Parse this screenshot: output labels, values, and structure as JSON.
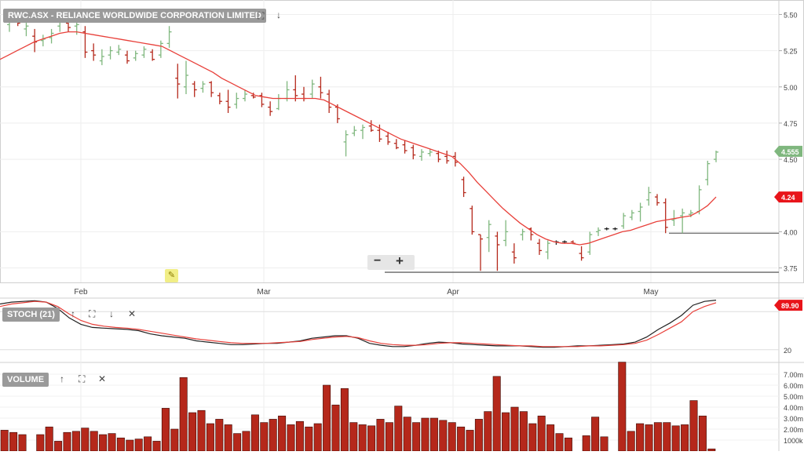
{
  "main_panel": {
    "title": "RWC.ASX - RELIANCE WORLDWIDE CORPORATION LIMITED",
    "y_ticks": [
      "5.50",
      "5.25",
      "5.00",
      "4.75",
      "4.50",
      "4.00",
      "3.75"
    ],
    "x_labels": [
      "Feb",
      "Mar",
      "Apr",
      "May"
    ],
    "last_price_label": "4.555",
    "ma_label": "4.24",
    "zoom_out": "−",
    "zoom_in": "+"
  },
  "stoch_panel": {
    "title": "STOCH (21)",
    "y_label": "20",
    "value_label": "89.90"
  },
  "volume_panel": {
    "title": "VOLUME",
    "y_ticks": [
      "7.00m",
      "6.00m",
      "5.00m",
      "4.00m",
      "3.00m",
      "2.00m",
      "1000k"
    ]
  },
  "colors": {
    "up": "#7fb77e",
    "down": "#b5281b",
    "neutral": "#222222",
    "ma": "#e8403a",
    "volume": "#b5281b"
  },
  "chart_data": [
    {
      "type": "line",
      "title": "RWC.ASX - RELIANCE WORLDWIDE CORPORATION LIMITED",
      "ylim": [
        3.65,
        5.6
      ],
      "bars": [
        {
          "o": 5.43,
          "h": 5.48,
          "l": 5.38,
          "c": 5.45
        },
        {
          "o": 5.45,
          "h": 5.49,
          "l": 5.42,
          "c": 5.44
        },
        {
          "o": 5.4,
          "h": 5.48,
          "l": 5.35,
          "c": 5.42
        },
        {
          "o": 5.35,
          "h": 5.4,
          "l": 5.24,
          "c": 5.31
        },
        {
          "o": 5.32,
          "h": 5.36,
          "l": 5.28,
          "c": 5.33
        },
        {
          "o": 5.34,
          "h": 5.4,
          "l": 5.3,
          "c": 5.37
        },
        {
          "o": 5.42,
          "h": 5.5,
          "l": 5.38,
          "c": 5.47
        },
        {
          "o": 5.44,
          "h": 5.5,
          "l": 5.38,
          "c": 5.41
        },
        {
          "o": 5.42,
          "h": 5.47,
          "l": 5.36,
          "c": 5.43
        },
        {
          "o": 5.38,
          "h": 5.42,
          "l": 5.2,
          "c": 5.24
        },
        {
          "o": 5.25,
          "h": 5.3,
          "l": 5.18,
          "c": 5.22
        },
        {
          "o": 5.18,
          "h": 5.26,
          "l": 5.15,
          "c": 5.21
        },
        {
          "o": 5.22,
          "h": 5.28,
          "l": 5.19,
          "c": 5.25
        },
        {
          "o": 5.24,
          "h": 5.29,
          "l": 5.22,
          "c": 5.26
        },
        {
          "o": 5.22,
          "h": 5.25,
          "l": 5.16,
          "c": 5.18
        },
        {
          "o": 5.2,
          "h": 5.25,
          "l": 5.18,
          "c": 5.23
        },
        {
          "o": 5.22,
          "h": 5.28,
          "l": 5.2,
          "c": 5.26
        },
        {
          "o": 5.24,
          "h": 5.26,
          "l": 5.18,
          "c": 5.19
        },
        {
          "o": 5.22,
          "h": 5.32,
          "l": 5.2,
          "c": 5.3
        },
        {
          "o": 5.3,
          "h": 5.42,
          "l": 5.27,
          "c": 5.38
        },
        {
          "o": 5.06,
          "h": 5.16,
          "l": 4.92,
          "c": 5.02
        },
        {
          "o": 5.0,
          "h": 5.18,
          "l": 4.95,
          "c": 5.08
        },
        {
          "o": 5.02,
          "h": 5.04,
          "l": 4.93,
          "c": 4.98
        },
        {
          "o": 4.99,
          "h": 5.04,
          "l": 4.96,
          "c": 5.02
        },
        {
          "o": 5.03,
          "h": 5.04,
          "l": 4.93,
          "c": 4.96
        },
        {
          "o": 4.94,
          "h": 4.96,
          "l": 4.88,
          "c": 4.9
        },
        {
          "o": 4.9,
          "h": 4.98,
          "l": 4.82,
          "c": 4.86
        },
        {
          "o": 4.88,
          "h": 4.96,
          "l": 4.85,
          "c": 4.92
        },
        {
          "o": 4.92,
          "h": 4.98,
          "l": 4.9,
          "c": 4.95
        },
        {
          "o": 4.94,
          "h": 4.96,
          "l": 4.92,
          "c": 4.93
        },
        {
          "o": 4.94,
          "h": 4.96,
          "l": 4.86,
          "c": 4.88
        },
        {
          "o": 4.86,
          "h": 4.9,
          "l": 4.8,
          "c": 4.83
        },
        {
          "o": 4.85,
          "h": 4.95,
          "l": 4.84,
          "c": 4.92
        },
        {
          "o": 4.92,
          "h": 5.04,
          "l": 4.9,
          "c": 4.98
        },
        {
          "o": 4.98,
          "h": 5.08,
          "l": 4.9,
          "c": 4.94
        },
        {
          "o": 4.95,
          "h": 5.0,
          "l": 4.9,
          "c": 4.92
        },
        {
          "o": 4.95,
          "h": 5.05,
          "l": 4.92,
          "c": 5.02
        },
        {
          "o": 5.0,
          "h": 5.07,
          "l": 4.92,
          "c": 4.96
        },
        {
          "o": 4.95,
          "h": 4.98,
          "l": 4.82,
          "c": 4.86
        },
        {
          "o": 4.86,
          "h": 4.88,
          "l": 4.75,
          "c": 4.78
        },
        {
          "o": 4.62,
          "h": 4.7,
          "l": 4.52,
          "c": 4.67
        },
        {
          "o": 4.68,
          "h": 4.73,
          "l": 4.66,
          "c": 4.7
        },
        {
          "o": 4.7,
          "h": 4.74,
          "l": 4.64,
          "c": 4.72
        },
        {
          "o": 4.73,
          "h": 4.77,
          "l": 4.69,
          "c": 4.7
        },
        {
          "o": 4.7,
          "h": 4.74,
          "l": 4.62,
          "c": 4.64
        },
        {
          "o": 4.66,
          "h": 4.69,
          "l": 4.6,
          "c": 4.62
        },
        {
          "o": 4.61,
          "h": 4.64,
          "l": 4.57,
          "c": 4.58
        },
        {
          "o": 4.6,
          "h": 4.63,
          "l": 4.54,
          "c": 4.56
        },
        {
          "o": 4.58,
          "h": 4.6,
          "l": 4.5,
          "c": 4.53
        },
        {
          "o": 4.52,
          "h": 4.57,
          "l": 4.49,
          "c": 4.55
        },
        {
          "o": 4.54,
          "h": 4.57,
          "l": 4.52,
          "c": 4.55
        },
        {
          "o": 4.54,
          "h": 4.56,
          "l": 4.48,
          "c": 4.5
        },
        {
          "o": 4.52,
          "h": 4.56,
          "l": 4.47,
          "c": 4.49
        },
        {
          "o": 4.52,
          "h": 4.55,
          "l": 4.45,
          "c": 4.48
        },
        {
          "o": 4.36,
          "h": 4.38,
          "l": 4.24,
          "c": 4.27
        },
        {
          "o": 4.16,
          "h": 4.18,
          "l": 3.98,
          "c": 4.0
        },
        {
          "o": 3.98,
          "h": 3.98,
          "l": 3.73,
          "c": 3.95
        },
        {
          "o": 3.96,
          "h": 4.08,
          "l": 3.86,
          "c": 4.05
        },
        {
          "o": 3.97,
          "h": 4.0,
          "l": 3.73,
          "c": 3.91
        },
        {
          "o": 3.94,
          "h": 4.08,
          "l": 3.9,
          "c": 4.0
        },
        {
          "o": 3.86,
          "h": 3.92,
          "l": 3.78,
          "c": 3.82
        },
        {
          "o": 3.98,
          "h": 4.02,
          "l": 3.94,
          "c": 4.0
        },
        {
          "o": 4.02,
          "h": 4.03,
          "l": 3.94,
          "c": 3.98
        },
        {
          "o": 3.92,
          "h": 3.95,
          "l": 3.84,
          "c": 3.87
        },
        {
          "o": 3.86,
          "h": 3.94,
          "l": 3.81,
          "c": 3.92
        },
        {
          "o": 3.93,
          "h": 3.94,
          "l": 3.91,
          "c": 3.93
        },
        {
          "o": 3.93,
          "h": 3.94,
          "l": 3.92,
          "c": 3.93
        },
        {
          "o": 3.93,
          "h": 3.94,
          "l": 3.92,
          "c": 3.92
        },
        {
          "o": 3.85,
          "h": 3.9,
          "l": 3.8,
          "c": 3.82
        },
        {
          "o": 3.86,
          "h": 4.0,
          "l": 3.84,
          "c": 3.98
        },
        {
          "o": 4.0,
          "h": 4.03,
          "l": 3.97,
          "c": 4.01
        },
        {
          "o": 4.02,
          "h": 4.03,
          "l": 4.01,
          "c": 4.02
        },
        {
          "o": 4.02,
          "h": 4.03,
          "l": 4.01,
          "c": 4.02
        },
        {
          "o": 4.04,
          "h": 4.13,
          "l": 4.02,
          "c": 4.11
        },
        {
          "o": 4.1,
          "h": 4.15,
          "l": 4.08,
          "c": 4.13
        },
        {
          "o": 4.14,
          "h": 4.2,
          "l": 4.07,
          "c": 4.17
        },
        {
          "o": 4.22,
          "h": 4.31,
          "l": 4.18,
          "c": 4.27
        },
        {
          "o": 4.24,
          "h": 4.26,
          "l": 4.18,
          "c": 4.2
        },
        {
          "o": 4.2,
          "h": 4.23,
          "l": 3.99,
          "c": 4.03
        },
        {
          "o": 4.08,
          "h": 4.15,
          "l": 4.04,
          "c": 4.09
        },
        {
          "o": 4.11,
          "h": 4.16,
          "l": 3.99,
          "c": 4.13
        },
        {
          "o": 4.12,
          "h": 4.15,
          "l": 4.1,
          "c": 4.13
        },
        {
          "o": 4.14,
          "h": 4.32,
          "l": 4.12,
          "c": 4.29
        },
        {
          "o": 4.36,
          "h": 4.49,
          "l": 4.32,
          "c": 4.47
        },
        {
          "o": 4.5,
          "h": 4.56,
          "l": 4.48,
          "c": 4.55
        }
      ],
      "moving_average": [
        5.19,
        5.22,
        5.25,
        5.28,
        5.31,
        5.33,
        5.35,
        5.37,
        5.38,
        5.38,
        5.37,
        5.36,
        5.35,
        5.34,
        5.33,
        5.32,
        5.31,
        5.3,
        5.29,
        5.28,
        5.25,
        5.22,
        5.19,
        5.16,
        5.13,
        5.1,
        5.06,
        5.03,
        5.0,
        4.97,
        4.94,
        4.93,
        4.92,
        4.92,
        4.92,
        4.92,
        4.92,
        4.92,
        4.91,
        4.88,
        4.85,
        4.82,
        4.79,
        4.76,
        4.73,
        4.7,
        4.67,
        4.64,
        4.62,
        4.6,
        4.58,
        4.56,
        4.54,
        4.52,
        4.47,
        4.41,
        4.34,
        4.28,
        4.22,
        4.16,
        4.11,
        4.06,
        4.02,
        3.98,
        3.95,
        3.93,
        3.92,
        3.92,
        3.91,
        3.92,
        3.94,
        3.96,
        3.98,
        4.0,
        4.01,
        4.03,
        4.05,
        4.07,
        4.08,
        4.09,
        4.1,
        4.11,
        4.14,
        4.18,
        4.24
      ],
      "horizontal_lines": [
        3.99,
        3.72
      ],
      "last_price": 4.555,
      "ma_value": 4.24
    },
    {
      "type": "line",
      "title": "STOCH (21)",
      "ylim": [
        0,
        100
      ],
      "series": [
        {
          "values": [
            92,
            95,
            96,
            97,
            95,
            85,
            70,
            60,
            55,
            54,
            53,
            52,
            50,
            45,
            42,
            40,
            38,
            34,
            32,
            30,
            28,
            28,
            29,
            30,
            30,
            32,
            34,
            38,
            40,
            42,
            42,
            38,
            30,
            27,
            25,
            25,
            27,
            30,
            32,
            31,
            29,
            28,
            27,
            26,
            26,
            26,
            25,
            24,
            24,
            25,
            26,
            26,
            27,
            28,
            29,
            32,
            40,
            52,
            62,
            74,
            90,
            96,
            98
          ]
        },
        {
          "values": [
            88,
            92,
            94,
            96,
            95,
            88,
            76,
            66,
            60,
            57,
            55,
            54,
            52,
            49,
            46,
            43,
            40,
            37,
            35,
            33,
            31,
            30,
            30,
            30,
            31,
            32,
            33,
            36,
            38,
            40,
            41,
            39,
            34,
            30,
            28,
            27,
            27,
            28,
            30,
            31,
            31,
            30,
            29,
            28,
            27,
            26,
            26,
            25,
            25,
            25,
            25,
            26,
            26,
            27,
            28,
            30,
            35,
            44,
            54,
            64,
            80,
            88,
            94
          ]
        }
      ],
      "value": 89.9,
      "reference": 20
    },
    {
      "type": "bar",
      "title": "VOLUME",
      "ylim": [
        0,
        8
      ],
      "values": [
        1.9,
        1.7,
        1.5,
        0.0,
        1.5,
        2.2,
        0.9,
        1.7,
        1.8,
        2.1,
        1.8,
        1.5,
        1.6,
        1.2,
        1.0,
        1.1,
        1.3,
        0.9,
        3.9,
        2.0,
        6.7,
        3.5,
        3.7,
        2.5,
        2.9,
        2.4,
        1.6,
        1.8,
        3.3,
        2.6,
        2.9,
        3.2,
        2.4,
        2.7,
        2.2,
        2.5,
        6.0,
        4.2,
        5.7,
        2.6,
        2.4,
        2.3,
        2.9,
        2.6,
        4.1,
        3.1,
        2.6,
        3.0,
        3.0,
        2.8,
        2.6,
        2.2,
        1.9,
        2.9,
        3.6,
        6.8,
        3.5,
        4.0,
        3.6,
        2.5,
        3.2,
        2.4,
        1.6,
        1.2,
        0.0,
        1.4,
        3.1,
        1.3,
        0.0,
        8.1,
        1.8,
        2.5,
        2.4,
        2.6,
        2.6,
        2.3,
        2.4,
        4.6,
        3.2,
        0.2
      ]
    }
  ]
}
